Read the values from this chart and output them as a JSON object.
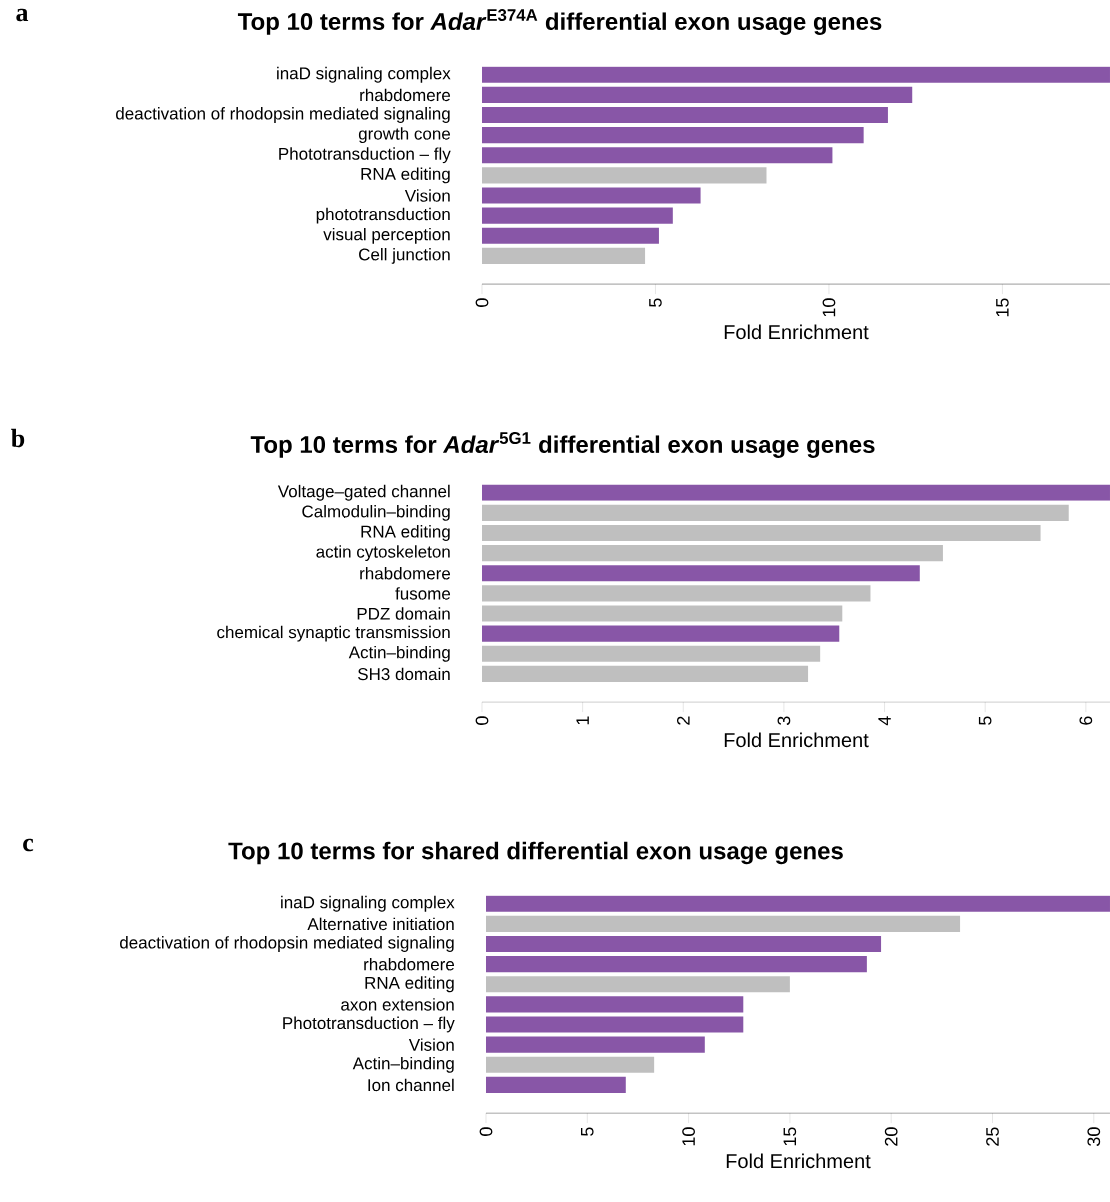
{
  "chart_data": [
    {
      "type": "bar",
      "orientation": "horizontal",
      "title": "Top 10 terms for *Adar*$^{E374A}$ differential exon usage genes",
      "xlabel": "Fold Enrichment",
      "categories": [
        "inaD signaling complex",
        "rhabdomere",
        "deactivation of rhodopsin mediated signaling",
        "growth cone",
        "Phototransduction – fly",
        "RNA editing",
        "Vision",
        "phototransduction",
        "visual perception",
        "Cell junction"
      ],
      "values": [
        18.1,
        12.4,
        11.7,
        11.0,
        10.1,
        8.2,
        6.3,
        5.5,
        5.1,
        4.7
      ],
      "colors": [
        "#8856a7",
        "#8856a7",
        "#8856a7",
        "#8856a7",
        "#8856a7",
        "#bfbfbf",
        "#8856a7",
        "#8856a7",
        "#8856a7",
        "#bfbfbf"
      ],
      "xlim": [
        0,
        18.1
      ],
      "xticks": [
        0,
        5,
        10,
        15
      ],
      "annotations": [
        "a"
      ]
    },
    {
      "type": "bar",
      "orientation": "horizontal",
      "title": "Top 10 terms for *Adar*$^{5G1}$ differential exon usage genes",
      "xlabel": "Fold Enrichment",
      "categories": [
        "Voltage–gated channel",
        "Calmodulin–binding",
        "RNA editing",
        "actin cytoskeleton",
        "rhabdomere",
        "fusome",
        "PDZ domain",
        "chemical synaptic transmission",
        "Actin–binding",
        "SH3 domain"
      ],
      "values": [
        6.24,
        5.83,
        5.55,
        4.58,
        4.35,
        3.86,
        3.58,
        3.55,
        3.36,
        3.24
      ],
      "colors": [
        "#8856a7",
        "#bfbfbf",
        "#bfbfbf",
        "#bfbfbf",
        "#8856a7",
        "#bfbfbf",
        "#bfbfbf",
        "#8856a7",
        "#bfbfbf",
        "#bfbfbf"
      ],
      "xlim": [
        0,
        6.24
      ],
      "xticks": [
        0,
        1,
        2,
        3,
        4,
        5,
        6
      ],
      "annotations": [
        "b"
      ]
    },
    {
      "type": "bar",
      "orientation": "horizontal",
      "title": "Top 10 terms for shared differential exon usage genes",
      "xlabel": "Fold Enrichment",
      "categories": [
        "inaD signaling complex",
        "Alternative initiation",
        "deactivation of rhodopsin mediated signaling",
        "rhabdomere",
        "RNA editing",
        "axon extension",
        "Phototransduction – fly",
        "Vision",
        "Actin–binding",
        "Ion channel"
      ],
      "values": [
        30.8,
        23.4,
        19.5,
        18.8,
        15.0,
        12.7,
        12.7,
        10.8,
        8.3,
        6.9
      ],
      "colors": [
        "#8856a7",
        "#bfbfbf",
        "#8856a7",
        "#8856a7",
        "#bfbfbf",
        "#8856a7",
        "#8856a7",
        "#8856a7",
        "#bfbfbf",
        "#8856a7"
      ],
      "xlim": [
        0,
        30.8
      ],
      "xticks": [
        0,
        5,
        10,
        15,
        20,
        25,
        30
      ],
      "annotations": [
        "c"
      ]
    }
  ]
}
